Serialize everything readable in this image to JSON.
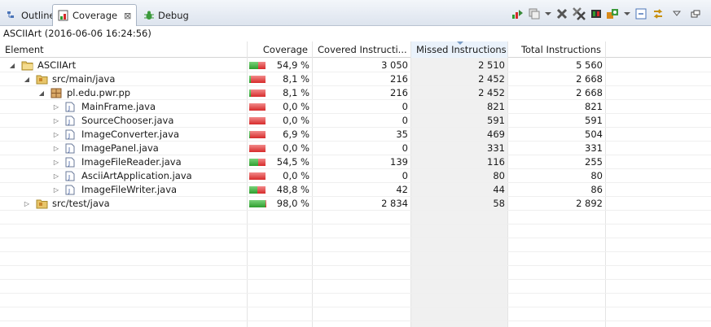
{
  "tabs": [
    {
      "label": "Outline",
      "icon": "outline-icon"
    },
    {
      "label": "Coverage",
      "icon": "coverage-icon",
      "close": "⊠"
    },
    {
      "label": "Debug",
      "icon": "debug-icon"
    }
  ],
  "toolbar": {
    "icons": [
      "relaunch-icon",
      "merge-sessions-icon",
      "remove-session-icon",
      "remove-all-sessions-icon",
      "dump-execution-data-icon",
      "select-session-icon",
      "collapse-all-icon",
      "link-with-selection-icon",
      "view-menu-icon",
      "minimize-icon"
    ]
  },
  "session": {
    "label": "ASCIIArt (2016-06-06 16:24:56)"
  },
  "columns": {
    "element": "Element",
    "coverage": "Coverage",
    "covered": "Covered Instructi...",
    "missed": "Missed Instructions",
    "total": "Total Instructions"
  },
  "sorted_column": "missed",
  "rows": [
    {
      "name": "ASCIIArt",
      "type": "project",
      "twisty": "◢",
      "coverage": "54,9 %",
      "covered": "3 050",
      "missed": "2 510",
      "total": "5 560",
      "ratio": 0.549
    },
    {
      "name": "src/main/java",
      "type": "source-folder",
      "twisty": "◢",
      "coverage": "8,1 %",
      "covered": "216",
      "missed": "2 452",
      "total": "2 668",
      "ratio": 0.081
    },
    {
      "name": "pl.edu.pwr.pp",
      "type": "package",
      "twisty": "◢",
      "coverage": "8,1 %",
      "covered": "216",
      "missed": "2 452",
      "total": "2 668",
      "ratio": 0.081
    },
    {
      "name": "MainFrame.java",
      "type": "java-file",
      "twisty": "▷",
      "coverage": "0,0 %",
      "covered": "0",
      "missed": "821",
      "total": "821",
      "ratio": 0.0
    },
    {
      "name": "SourceChooser.java",
      "type": "java-file",
      "twisty": "▷",
      "coverage": "0,0 %",
      "covered": "0",
      "missed": "591",
      "total": "591",
      "ratio": 0.0
    },
    {
      "name": "ImageConverter.java",
      "type": "java-file",
      "twisty": "▷",
      "coverage": "6,9 %",
      "covered": "35",
      "missed": "469",
      "total": "504",
      "ratio": 0.069
    },
    {
      "name": "ImagePanel.java",
      "type": "java-file",
      "twisty": "▷",
      "coverage": "0,0 %",
      "covered": "0",
      "missed": "331",
      "total": "331",
      "ratio": 0.0
    },
    {
      "name": "ImageFileReader.java",
      "type": "java-file",
      "twisty": "▷",
      "coverage": "54,5 %",
      "covered": "139",
      "missed": "116",
      "total": "255",
      "ratio": 0.545
    },
    {
      "name": "AsciiArtApplication.java",
      "type": "java-file",
      "twisty": "▷",
      "coverage": "0,0 %",
      "covered": "0",
      "missed": "80",
      "total": "80",
      "ratio": 0.0
    },
    {
      "name": "ImageFileWriter.java",
      "type": "java-file",
      "twisty": "▷",
      "coverage": "48,8 %",
      "covered": "42",
      "missed": "44",
      "total": "86",
      "ratio": 0.488
    },
    {
      "name": "src/test/java",
      "type": "source-folder",
      "twisty": "▷",
      "coverage": "98,0 %",
      "covered": "2 834",
      "missed": "58",
      "total": "2 892",
      "ratio": 0.98
    }
  ]
}
